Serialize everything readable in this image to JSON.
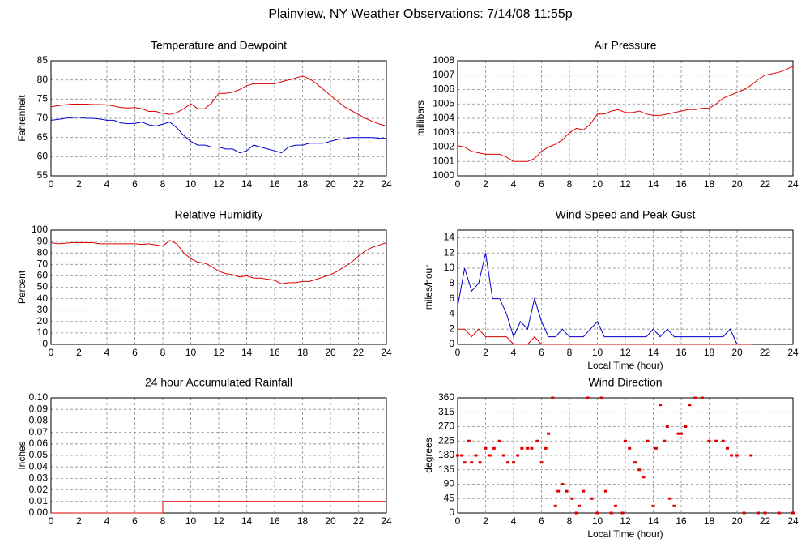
{
  "title": "Plainview, NY Weather Observations: 7/14/08 11:55p",
  "chart_data": [
    {
      "type": "line",
      "title": "Temperature and Dewpoint",
      "ylabel": "Fahrenheit",
      "x": [
        0,
        0.5,
        1,
        1.5,
        2,
        2.5,
        3,
        3.5,
        4,
        4.5,
        5,
        5.5,
        6,
        6.5,
        7,
        7.5,
        8,
        8.5,
        9,
        9.5,
        10,
        10.5,
        11,
        11.5,
        12,
        12.5,
        13,
        13.5,
        14,
        14.5,
        15,
        15.5,
        16,
        16.5,
        17,
        17.5,
        18,
        18.5,
        19,
        19.5,
        20,
        20.5,
        21,
        21.5,
        22,
        22.5,
        23,
        23.5,
        24
      ],
      "series": [
        {
          "color": "#dd0000",
          "values": [
            73,
            73.3,
            73.5,
            73.7,
            73.7,
            73.7,
            73.6,
            73.6,
            73.5,
            73.2,
            72.8,
            72.7,
            72.8,
            72.5,
            71.8,
            71.8,
            71.3,
            71,
            71.5,
            72.5,
            73.8,
            72.5,
            72.5,
            74,
            76.5,
            76.5,
            76.8,
            77.5,
            78.5,
            79,
            79,
            79,
            79,
            79.5,
            80,
            80.5,
            81,
            80.3,
            79,
            77.5,
            76,
            74.5,
            73,
            72,
            71,
            70,
            69.2,
            68.5,
            68
          ]
        },
        {
          "color": "#0000cc",
          "values": [
            69.5,
            69.7,
            70,
            70.2,
            70.3,
            70,
            70,
            69.8,
            69.5,
            69.5,
            68.8,
            68.6,
            68.7,
            69,
            68.3,
            68,
            68.5,
            69,
            67.5,
            65.5,
            64,
            63,
            63,
            62.5,
            62.5,
            62,
            62,
            61,
            61.5,
            63,
            62.5,
            62,
            61.5,
            61,
            62.5,
            63,
            63,
            63.5,
            63.5,
            63.5,
            64,
            64.5,
            64.7,
            65,
            65,
            65,
            65,
            64.8,
            64.8
          ]
        }
      ],
      "xlim": [
        0,
        24
      ],
      "xticks": [
        0,
        2,
        4,
        6,
        8,
        10,
        12,
        14,
        16,
        18,
        20,
        22,
        24
      ],
      "ylim": [
        55,
        85
      ],
      "yticks": [
        55,
        60,
        65,
        70,
        75,
        80,
        85
      ],
      "grid": true
    },
    {
      "type": "line",
      "title": "Air Pressure",
      "ylabel": "millibars",
      "x": [
        0,
        0.5,
        1,
        1.5,
        2,
        2.5,
        3,
        3.5,
        4,
        4.5,
        5,
        5.5,
        6,
        6.5,
        7,
        7.5,
        8,
        8.5,
        9,
        9.5,
        10,
        10.5,
        11,
        11.5,
        12,
        12.5,
        13,
        13.5,
        14,
        14.5,
        15,
        15.5,
        16,
        16.5,
        17,
        17.5,
        18,
        18.5,
        19,
        19.5,
        20,
        20.5,
        21,
        21.5,
        22,
        22.5,
        23,
        23.5,
        24
      ],
      "series": [
        {
          "color": "#dd0000",
          "values": [
            1002.1,
            1002,
            1001.7,
            1001.6,
            1001.5,
            1001.5,
            1001.5,
            1001.3,
            1001,
            1001,
            1001,
            1001.2,
            1001.7,
            1002,
            1002.2,
            1002.5,
            1003,
            1003.3,
            1003.2,
            1003.6,
            1004.3,
            1004.3,
            1004.5,
            1004.6,
            1004.4,
            1004.4,
            1004.5,
            1004.3,
            1004.2,
            1004.2,
            1004.3,
            1004.4,
            1004.5,
            1004.6,
            1004.6,
            1004.7,
            1004.7,
            1005,
            1005.4,
            1005.6,
            1005.8,
            1006,
            1006.3,
            1006.7,
            1007,
            1007.1,
            1007.2,
            1007.4,
            1007.6
          ]
        }
      ],
      "xlim": [
        0,
        24
      ],
      "xticks": [
        0,
        2,
        4,
        6,
        8,
        10,
        12,
        14,
        16,
        18,
        20,
        22,
        24
      ],
      "ylim": [
        1000,
        1008
      ],
      "yticks": [
        1000,
        1001,
        1002,
        1003,
        1004,
        1005,
        1006,
        1007,
        1008
      ],
      "grid": true
    },
    {
      "type": "line",
      "title": "Relative Humidity",
      "ylabel": "Percent",
      "x": [
        0,
        0.5,
        1,
        1.5,
        2,
        2.5,
        3,
        3.5,
        4,
        4.5,
        5,
        5.5,
        6,
        6.5,
        7,
        7.5,
        8,
        8.5,
        9,
        9.5,
        10,
        10.5,
        11,
        11.5,
        12,
        12.5,
        13,
        13.5,
        14,
        14.5,
        15,
        15.5,
        16,
        16.5,
        17,
        17.5,
        18,
        18.5,
        19,
        19.5,
        20,
        20.5,
        21,
        21.5,
        22,
        22.5,
        23,
        23.5,
        24
      ],
      "series": [
        {
          "color": "#dd0000",
          "values": [
            89,
            88,
            88.5,
            89,
            89,
            89,
            89,
            88,
            88,
            88,
            88,
            88,
            88,
            87.5,
            88,
            87,
            86,
            91,
            88,
            80,
            75,
            72,
            71,
            68,
            64,
            62,
            61,
            59,
            60,
            58,
            58,
            57,
            56,
            53,
            54,
            54,
            55,
            55,
            57,
            59,
            61,
            64,
            68,
            72,
            77,
            82,
            85,
            87,
            89
          ]
        }
      ],
      "xlim": [
        0,
        24
      ],
      "xticks": [
        0,
        2,
        4,
        6,
        8,
        10,
        12,
        14,
        16,
        18,
        20,
        22,
        24
      ],
      "ylim": [
        0,
        100
      ],
      "yticks": [
        0,
        10,
        20,
        30,
        40,
        50,
        60,
        70,
        80,
        90,
        100
      ],
      "grid": true
    },
    {
      "type": "line",
      "title": "Wind Speed and Peak Gust",
      "ylabel": "miles/hour",
      "xlabel": "Local Time (hour)",
      "x": [
        0,
        0.5,
        1,
        1.5,
        2,
        2.5,
        3,
        3.5,
        4,
        4.5,
        5,
        5.5,
        6,
        6.5,
        7,
        7.5,
        8,
        8.5,
        9,
        9.5,
        10,
        10.5,
        11,
        11.5,
        12,
        12.5,
        13,
        13.5,
        14,
        14.5,
        15,
        15.5,
        16,
        16.5,
        17,
        17.5,
        18,
        18.5,
        19,
        19.5,
        20,
        20.5,
        21
      ],
      "series": [
        {
          "color": "#0000cc",
          "values": [
            5,
            10,
            7,
            8,
            12,
            6,
            6,
            4,
            1,
            3,
            2,
            6,
            3,
            1,
            1,
            2,
            1,
            1,
            1,
            2,
            3,
            1,
            1,
            1,
            1,
            1,
            1,
            1,
            2,
            1,
            2,
            1,
            1,
            1,
            1,
            1,
            1,
            1,
            1,
            2,
            0,
            0,
            0
          ]
        },
        {
          "color": "#dd0000",
          "values": [
            2,
            2,
            1,
            2,
            1,
            1,
            1,
            1,
            0,
            0,
            0,
            1,
            0,
            0,
            0,
            0,
            0,
            0,
            0,
            0,
            0,
            0,
            0,
            0,
            0,
            0,
            0,
            0,
            0,
            0,
            0,
            0,
            0,
            0,
            0,
            0,
            0,
            0,
            0,
            0,
            0,
            0,
            0
          ]
        }
      ],
      "xlim": [
        0,
        24
      ],
      "xticks": [
        0,
        2,
        4,
        6,
        8,
        10,
        12,
        14,
        16,
        18,
        20,
        22,
        24
      ],
      "ylim": [
        0,
        15
      ],
      "yticks": [
        0,
        2,
        4,
        6,
        8,
        10,
        12,
        14
      ],
      "grid": true
    },
    {
      "type": "line",
      "title": "24 hour Accumulated Rainfall",
      "ylabel": "Inches",
      "x": [
        0,
        8,
        8,
        24
      ],
      "series": [
        {
          "color": "#dd0000",
          "values": [
            0,
            0,
            0.01,
            0.01
          ]
        }
      ],
      "xlim": [
        0,
        24
      ],
      "xticks": [
        0,
        2,
        4,
        6,
        8,
        10,
        12,
        14,
        16,
        18,
        20,
        22,
        24
      ],
      "ylim": [
        0,
        0.1
      ],
      "yticks": [
        {
          "value": 0,
          "label": "0.00"
        },
        {
          "value": 0.01,
          "label": "0.01"
        },
        {
          "value": 0.02,
          "label": "0.02"
        },
        {
          "value": 0.03,
          "label": "0.03"
        },
        {
          "value": 0.04,
          "label": "0.04"
        },
        {
          "value": 0.05,
          "label": "0.05"
        },
        {
          "value": 0.06,
          "label": "0.06"
        },
        {
          "value": 0.07,
          "label": "0.07"
        },
        {
          "value": 0.08,
          "label": "0.08"
        },
        {
          "value": 0.09,
          "label": "0.09"
        },
        {
          "value": 0.1,
          "label": "0.10"
        }
      ],
      "grid": true
    },
    {
      "type": "scatter",
      "title": "Wind Direction",
      "ylabel": "degrees",
      "xlabel": "Local Time (hour)",
      "x": [
        0,
        0.3,
        0.5,
        0.8,
        1,
        1.3,
        1.6,
        2,
        2.3,
        2.6,
        3,
        3.3,
        3.6,
        4,
        4.3,
        4.6,
        5,
        5.3,
        5.7,
        6,
        6.3,
        6.5,
        6.8,
        7,
        7.2,
        7.5,
        7.8,
        8.2,
        8.5,
        8.7,
        9,
        9.3,
        9.6,
        10,
        10.3,
        10.6,
        11,
        11.3,
        11.8,
        12,
        12.3,
        12.7,
        13,
        13.3,
        13.6,
        14,
        14.2,
        14.5,
        14.8,
        15,
        15.2,
        15.5,
        15.8,
        16,
        16.3,
        16.6,
        17,
        17.5,
        18,
        18.5,
        19,
        19.3,
        19.6,
        20,
        20.5,
        21,
        21.5,
        22,
        23,
        24
      ],
      "series": [
        {
          "color": "#dd0000",
          "values": [
            180,
            180,
            158,
            225,
            158,
            180,
            158,
            202,
            180,
            202,
            225,
            180,
            158,
            158,
            180,
            202,
            202,
            202,
            225,
            158,
            202,
            248,
            360,
            22,
            68,
            90,
            68,
            45,
            0,
            22,
            68,
            360,
            45,
            0,
            360,
            68,
            0,
            22,
            0,
            225,
            202,
            158,
            135,
            112,
            225,
            22,
            202,
            338,
            225,
            270,
            45,
            22,
            248,
            248,
            270,
            338,
            360,
            360,
            225,
            225,
            225,
            202,
            180,
            180,
            0,
            180,
            0,
            0,
            0,
            0
          ]
        }
      ],
      "xlim": [
        0,
        24
      ],
      "xticks": [
        0,
        2,
        4,
        6,
        8,
        10,
        12,
        14,
        16,
        18,
        20,
        22,
        24
      ],
      "ylim": [
        0,
        360
      ],
      "yticks": [
        0,
        45,
        90,
        135,
        180,
        225,
        270,
        315,
        360
      ],
      "grid": true
    }
  ]
}
